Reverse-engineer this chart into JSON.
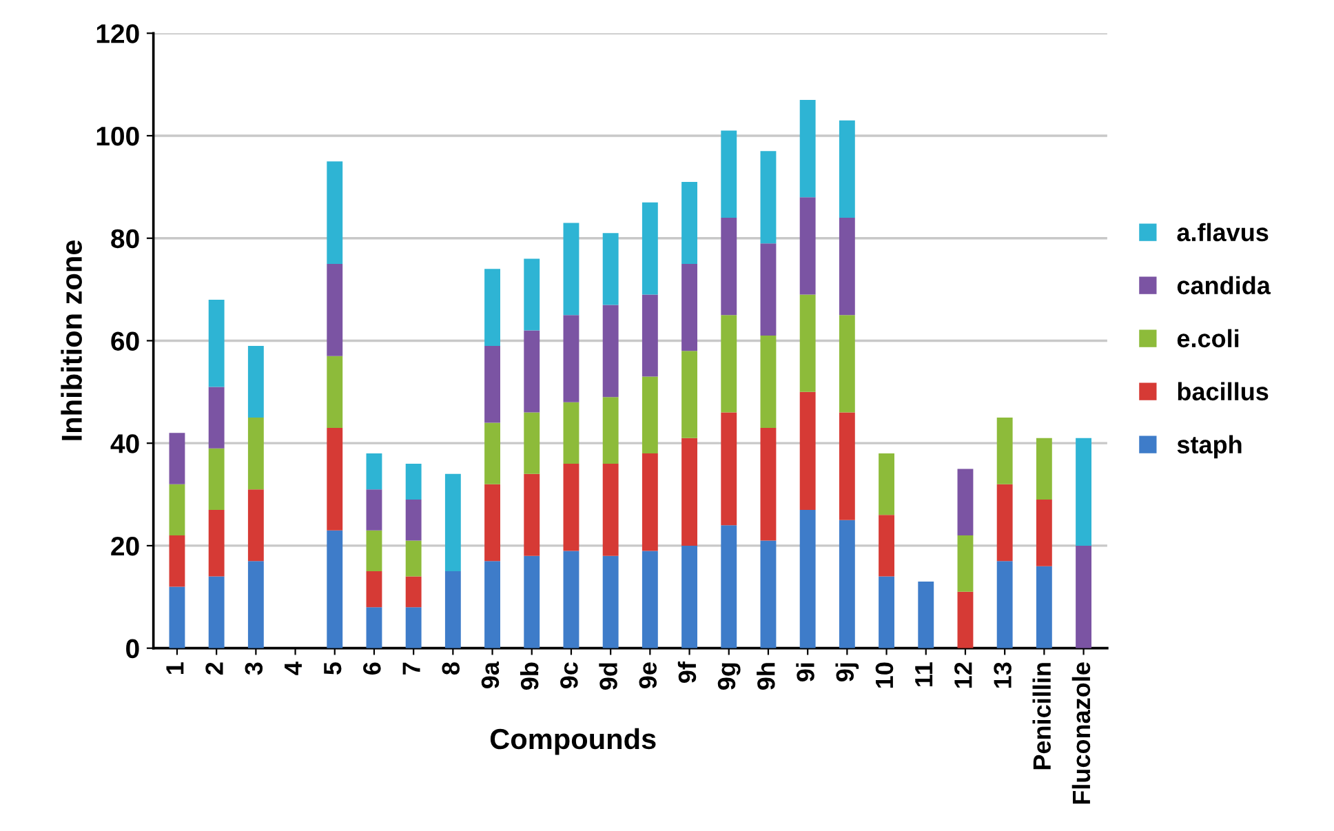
{
  "chart_data": {
    "type": "bar",
    "stacked": true,
    "xlabel": "Compounds",
    "ylabel": "Inhibition zone",
    "categories": [
      "1",
      "2",
      "3",
      "4",
      "5",
      "6",
      "7",
      "8",
      "9a",
      "9b",
      "9c",
      "9d",
      "9e",
      "9f",
      "9g",
      "9h",
      "9i",
      "9j",
      "10",
      "11",
      "12",
      "13",
      "Penicillin",
      "Fluconazole"
    ],
    "series": [
      {
        "name": "staph",
        "color": "#3e7cc9",
        "values": [
          12,
          14,
          17,
          0,
          23,
          8,
          8,
          15,
          17,
          18,
          19,
          18,
          19,
          20,
          24,
          21,
          27,
          25,
          14,
          13,
          0,
          17,
          16,
          0
        ]
      },
      {
        "name": "bacillus",
        "color": "#d63a35",
        "values": [
          10,
          13,
          14,
          0,
          20,
          7,
          6,
          0,
          15,
          16,
          17,
          18,
          19,
          21,
          22,
          22,
          23,
          21,
          12,
          0,
          11,
          15,
          13,
          0
        ]
      },
      {
        "name": "e.coli",
        "color": "#8dbb3a",
        "values": [
          10,
          12,
          14,
          0,
          14,
          8,
          7,
          0,
          12,
          12,
          12,
          13,
          15,
          17,
          19,
          18,
          19,
          19,
          12,
          0,
          11,
          13,
          12,
          0
        ]
      },
      {
        "name": "candida",
        "color": "#7b54a3",
        "values": [
          10,
          12,
          0,
          0,
          18,
          8,
          8,
          0,
          15,
          16,
          17,
          18,
          16,
          17,
          19,
          18,
          19,
          19,
          0,
          0,
          13,
          0,
          0,
          20
        ]
      },
      {
        "name": "a.flavus",
        "color": "#2eb4d4",
        "values": [
          0,
          17,
          14,
          0,
          20,
          7,
          7,
          19,
          15,
          14,
          18,
          14,
          18,
          16,
          17,
          18,
          19,
          19,
          0,
          0,
          0,
          0,
          0,
          21
        ]
      }
    ],
    "ylim": [
      0,
      120
    ],
    "yticks": [
      0,
      20,
      40,
      60,
      80,
      100,
      120
    ],
    "grid": "y",
    "legend": "right"
  }
}
